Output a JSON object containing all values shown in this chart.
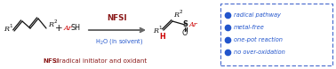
{
  "bg_color": "#ffffff",
  "dark_red": "#8B1A1A",
  "red": "#cc0000",
  "blue": "#2255cc",
  "dark_blue": "#2255cc",
  "gray": "#888888",
  "dark_gray": "#666666",
  "black": "#111111",
  "bullet_blue": "#2255cc",
  "dashed_blue": "#4466cc",
  "bullet_points": [
    "radical pathway",
    "metal-free",
    "one-pot reaction",
    "no over-oxidation"
  ],
  "nfsi_label": "NFSI",
  "bottom_label_bold": "NFSI",
  "bottom_label_rest": ": radical initiator and oxidant"
}
